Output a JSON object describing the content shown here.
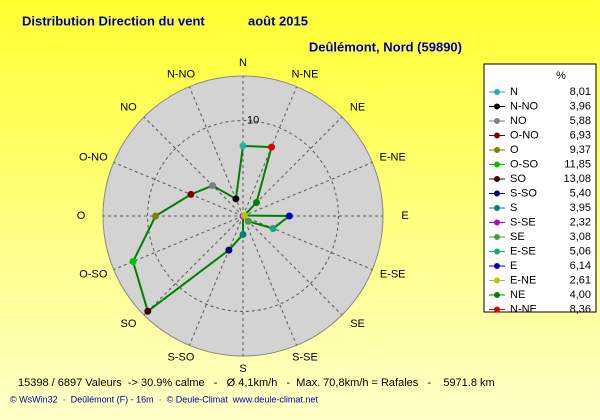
{
  "chart_data": {
    "type": "radar",
    "title": "Distribution Direction du vent",
    "period": "août 2015",
    "subtitle": "Deûlémont, Nord (59890)",
    "categories": [
      "N",
      "N-NO",
      "NO",
      "O-NO",
      "O",
      "O-SO",
      "SO",
      "S-SO",
      "S",
      "S-SE",
      "SE",
      "E-SE",
      "E",
      "E-NE",
      "NE",
      "N-NE"
    ],
    "values": [
      8.01,
      3.96,
      5.88,
      6.93,
      9.37,
      11.85,
      13.08,
      5.4,
      3.95,
      2.32,
      3.08,
      5.06,
      6.14,
      2.61,
      4.0,
      8.36
    ],
    "value_labels": [
      "8,01",
      "3,96",
      "5,88",
      "6,93",
      "9,37",
      "11,85",
      "13,08",
      "5,40",
      "3,95",
      "2,32",
      "3,08",
      "5,06",
      "6,14",
      "2,61",
      "4,00",
      "8,36"
    ],
    "colors": [
      "#20b2aa",
      "#000000",
      "#808080",
      "#800000",
      "#808000",
      "#00c000",
      "#400000",
      "#000080",
      "#008080",
      "#c000c0",
      "#40a040",
      "#20a080",
      "#0000c0",
      "#c0c000",
      "#008000",
      "#e00000"
    ],
    "line_color": "#008000",
    "rlim": [
      2.5,
      13.5
    ],
    "rticks": [
      10
    ],
    "legend_header": "%",
    "footer": "15398 / 6897 Valeurs  -> 30.9% calme   -   Ø 4,1km/h   -  Max. 70,8km/h = Rafales   -    5971.8 km",
    "credits": "© WsWin32  ·  Deûlémont (F) - 16m  ·  © Deule-Climat  www.deule-climat.net"
  }
}
